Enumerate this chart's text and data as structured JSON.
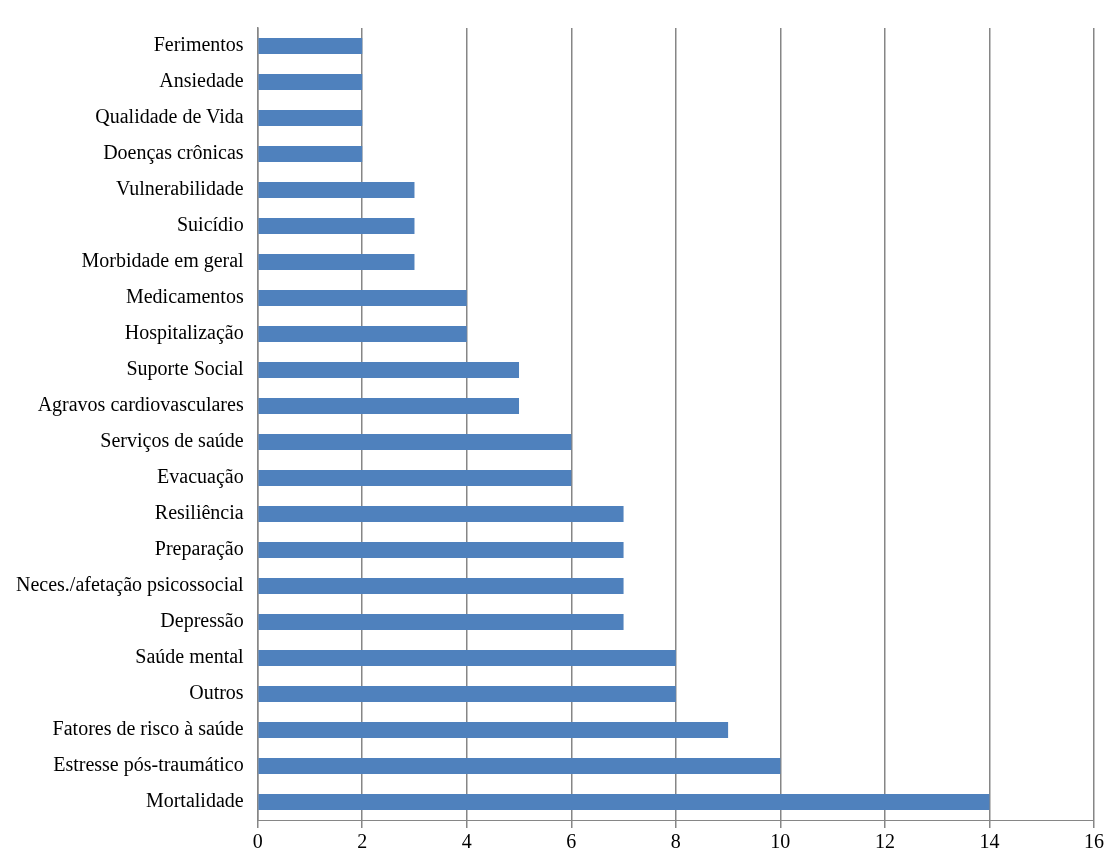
{
  "chart_data": {
    "type": "bar",
    "orientation": "horizontal",
    "categories": [
      "Ferimentos",
      "Ansiedade",
      "Qualidade de Vida",
      "Doenças crônicas",
      "Vulnerabilidade",
      "Suicídio",
      "Morbidade em geral",
      "Medicamentos",
      "Hospitalização",
      "Suporte Social",
      "Agravos cardiovasculares",
      "Serviços de saúde",
      "Evacuação",
      "Resiliência",
      "Preparação",
      "Neces./afetação psicossocial",
      "Depressão",
      "Saúde mental",
      "Outros",
      "Fatores de risco à saúde",
      "Estresse pós-traumático",
      "Mortalidade"
    ],
    "values": [
      2,
      2,
      2,
      2,
      3,
      3,
      3,
      4,
      4,
      5,
      5,
      6,
      6,
      7,
      7,
      7,
      7,
      8,
      8,
      9,
      10,
      14
    ],
    "color": "#4f81bd",
    "xlim": [
      0,
      16
    ],
    "xticks": [
      0,
      2,
      4,
      6,
      8,
      10,
      12,
      14,
      16
    ],
    "grid": "x",
    "legend": false
  }
}
